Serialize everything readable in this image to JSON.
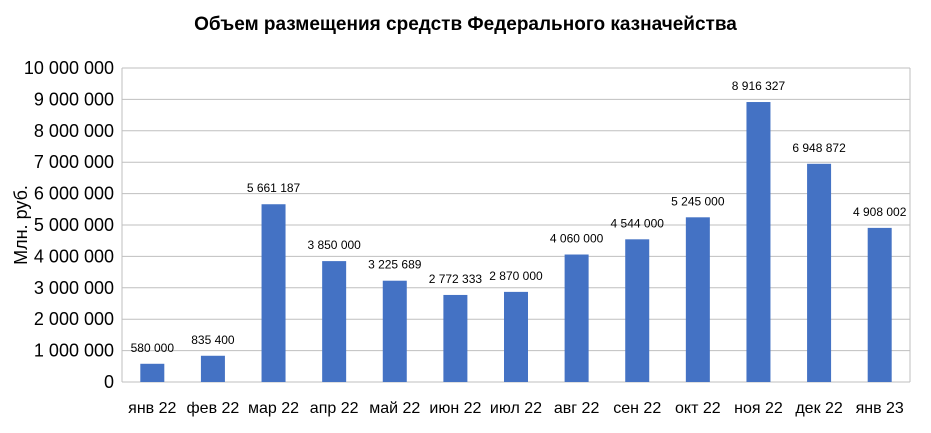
{
  "chart_data": {
    "type": "bar",
    "title": "Объем размещения средств Федерального казначейства",
    "ylabel": "Млн. руб.",
    "xlabel": "",
    "ylim": [
      0,
      10000000
    ],
    "yticks": [
      0,
      1000000,
      2000000,
      3000000,
      4000000,
      5000000,
      6000000,
      7000000,
      8000000,
      9000000,
      10000000
    ],
    "ytick_labels": [
      "0",
      "1 000 000",
      "2 000 000",
      "3 000 000",
      "4 000 000",
      "5 000 000",
      "6 000 000",
      "7 000 000",
      "8 000 000",
      "9 000 000",
      "10 000 000"
    ],
    "categories": [
      "янв 22",
      "фев 22",
      "мар 22",
      "апр 22",
      "май 22",
      "июн 22",
      "июл 22",
      "авг 22",
      "сен 22",
      "окт 22",
      "ноя 22",
      "дек 22",
      "янв 23"
    ],
    "values": [
      580000,
      835400,
      5661187,
      3850000,
      3225689,
      2772333,
      2870000,
      4060000,
      4544000,
      5245000,
      8916327,
      6948872,
      4908002
    ],
    "value_labels": [
      "580 000",
      "835 400",
      "5 661 187",
      "3 850 000",
      "3 225 689",
      "2 772 333",
      "2 870 000",
      "4 060 000",
      "4 544 000",
      "5 245 000",
      "8 916 327",
      "6 948 872",
      "4 908 002"
    ],
    "grid": true,
    "legend": "none",
    "bar_color": "#4472C4",
    "grid_color": "#BFBFBF"
  }
}
